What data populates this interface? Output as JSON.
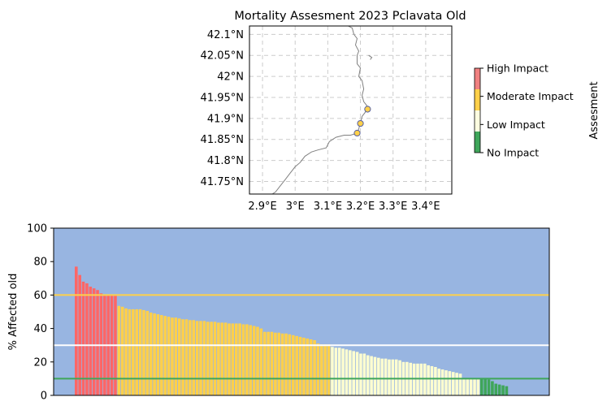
{
  "chart_data": [
    {
      "type": "map",
      "title": "Mortality Assesment 2023 Pclavata Old",
      "x_ticks": [
        {
          "value": 2.9,
          "label": "2.9°E"
        },
        {
          "value": 3.0,
          "label": "3°E"
        },
        {
          "value": 3.1,
          "label": "3.1°E"
        },
        {
          "value": 3.2,
          "label": "3.2°E"
        },
        {
          "value": 3.3,
          "label": "3.3°E"
        },
        {
          "value": 3.4,
          "label": "3.4°E"
        }
      ],
      "y_ticks": [
        {
          "value": 42.1,
          "label": "42.1°N"
        },
        {
          "value": 42.05,
          "label": "42.05°N"
        },
        {
          "value": 42.0,
          "label": "42°N"
        },
        {
          "value": 41.95,
          "label": "41.95°N"
        },
        {
          "value": 41.9,
          "label": "41.9°N"
        },
        {
          "value": 41.85,
          "label": "41.85°N"
        },
        {
          "value": 41.8,
          "label": "41.8°N"
        },
        {
          "value": 41.75,
          "label": "41.75°N"
        }
      ],
      "xlim": [
        2.86,
        3.48
      ],
      "ylim": [
        41.72,
        42.12
      ],
      "grid": true,
      "coastline": [
        [
          3.163,
          42.12
        ],
        [
          3.175,
          42.115
        ],
        [
          3.18,
          42.1
        ],
        [
          3.19,
          42.09
        ],
        [
          3.185,
          42.075
        ],
        [
          3.195,
          42.06
        ],
        [
          3.19,
          42.05
        ],
        [
          3.19,
          42.03
        ],
        [
          3.2,
          42.02
        ],
        [
          3.195,
          42.0
        ],
        [
          3.205,
          41.99
        ],
        [
          3.21,
          41.97
        ],
        [
          3.205,
          41.955
        ],
        [
          3.21,
          41.94
        ],
        [
          3.22,
          41.93
        ],
        [
          3.215,
          41.915
        ],
        [
          3.205,
          41.905
        ],
        [
          3.2,
          41.89
        ],
        [
          3.195,
          41.875
        ],
        [
          3.19,
          41.865
        ],
        [
          3.17,
          41.86
        ],
        [
          3.15,
          41.86
        ],
        [
          3.125,
          41.855
        ],
        [
          3.105,
          41.845
        ],
        [
          3.095,
          41.83
        ],
        [
          3.07,
          41.825
        ],
        [
          3.05,
          41.82
        ],
        [
          3.03,
          41.81
        ],
        [
          3.015,
          41.795
        ],
        [
          3.0,
          41.785
        ],
        [
          2.985,
          41.77
        ],
        [
          2.97,
          41.755
        ],
        [
          2.955,
          41.74
        ],
        [
          2.94,
          41.725
        ],
        [
          2.93,
          41.72
        ]
      ],
      "cape": [
        [
          3.225,
          42.05
        ],
        [
          3.235,
          42.045
        ],
        [
          3.23,
          42.04
        ]
      ],
      "sites": [
        {
          "lon": 3.222,
          "lat": 41.922,
          "assessment": "Moderate Impact"
        },
        {
          "lon": 3.2,
          "lat": 41.888,
          "assessment": "Moderate Impact"
        },
        {
          "lon": 3.19,
          "lat": 41.865,
          "assessment": "Moderate Impact"
        }
      ],
      "colorbar": {
        "label": "Assesment",
        "categories": [
          {
            "label": "High Impact",
            "color": "#f08080"
          },
          {
            "label": "Moderate Impact",
            "color": "#ffd04a"
          },
          {
            "label": "Low Impact",
            "color": "#fdfde0"
          },
          {
            "label": "No Impact",
            "color": "#3fa65a"
          }
        ]
      }
    },
    {
      "type": "bar",
      "ylabel": "% Affected old",
      "ylim": [
        0,
        100
      ],
      "y_ticks": [
        0,
        20,
        40,
        60,
        80,
        100
      ],
      "background_color": "#98b5e1",
      "thresholds": [
        {
          "value": 60,
          "color": "#ffd04a"
        },
        {
          "value": 30,
          "color": "#ffffff"
        },
        {
          "value": 10,
          "color": "#3fa65a"
        }
      ],
      "level_colors": {
        "high": "#ff6666",
        "moderate": "#ffd04a",
        "low": "#fdfdd0",
        "none": "#3fa65a"
      },
      "values": [
        77,
        72,
        68,
        67,
        65,
        64,
        63,
        61,
        60,
        60,
        60,
        60,
        53.5,
        53,
        52,
        51.5,
        51.5,
        51.5,
        51.5,
        51,
        50.5,
        49.5,
        49,
        48.5,
        48,
        47.5,
        47,
        46.5,
        46.5,
        46,
        45.5,
        45.5,
        45,
        45,
        44.5,
        44.5,
        44.5,
        44,
        44,
        44,
        43.5,
        43.5,
        43.5,
        43,
        43,
        43,
        43,
        42.5,
        42.5,
        42,
        41.5,
        41,
        40,
        38,
        38,
        38,
        37.5,
        37.5,
        37,
        37,
        36.5,
        36,
        35.5,
        35,
        34.5,
        34,
        33.5,
        33,
        31,
        30.5,
        30.5,
        30.5,
        29,
        28.5,
        28.5,
        28,
        27.5,
        27,
        26.5,
        26,
        25,
        25,
        24,
        23.5,
        23,
        22.5,
        22,
        22,
        21.5,
        21.5,
        21.5,
        21,
        20,
        20,
        19.5,
        19,
        19,
        19,
        19,
        18,
        17.5,
        17,
        16,
        15.5,
        15,
        14.5,
        14,
        13.5,
        13,
        10,
        10,
        10,
        10,
        10,
        10,
        10,
        9.5,
        8.5,
        7,
        6.5,
        6,
        5.5
      ]
    }
  ]
}
